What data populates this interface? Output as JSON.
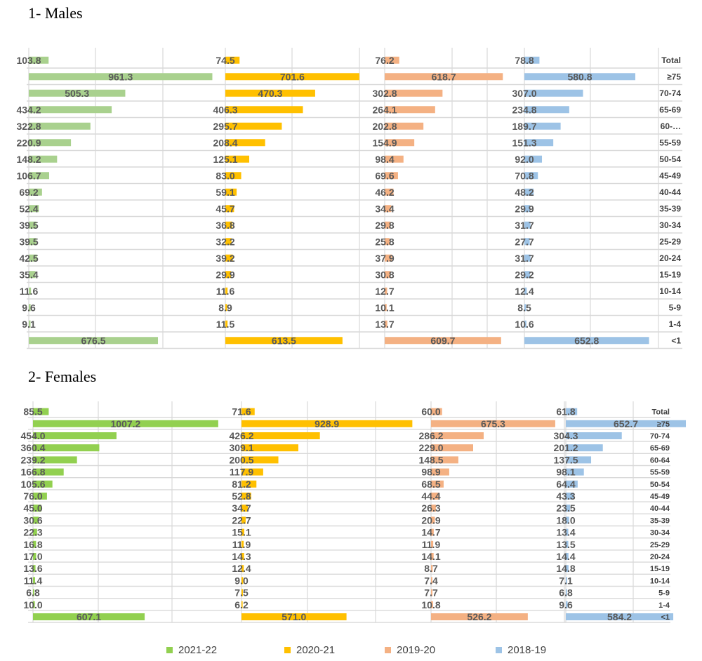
{
  "sections": {
    "males_title": "1-    Males",
    "females_title": "2-   Females"
  },
  "legend": [
    {
      "label": "2021-22",
      "color": "#92d050"
    },
    {
      "label": "2020-21",
      "color": "#ffc000"
    },
    {
      "label": "2019-20",
      "color": "#f4b183"
    },
    {
      "label": "2018-19",
      "color": "#9dc3e6"
    }
  ],
  "chart_data": [
    {
      "type": "bar",
      "title": "1-    Males",
      "categories": [
        "Total",
        "≥75",
        "70-74",
        "65-69",
        "60-…",
        "55-59",
        "50-54",
        "45-49",
        "40-44",
        "35-39",
        "30-34",
        "25-29",
        "20-24",
        "15-19",
        "10-14",
        "5-9",
        "1-4",
        "<1"
      ],
      "series": [
        {
          "name": "2021-22",
          "color": "#a9d18e",
          "values": [
            103.8,
            961.3,
            505.3,
            434.2,
            322.8,
            220.9,
            148.2,
            106.7,
            69.2,
            52.4,
            39.5,
            39.5,
            42.5,
            35.4,
            11.6,
            9.6,
            9.1,
            676.5
          ]
        },
        {
          "name": "2020-21",
          "color": "#ffc000",
          "values": [
            74.5,
            701.6,
            470.3,
            406.3,
            295.7,
            208.4,
            125.1,
            83.0,
            59.1,
            45.7,
            36.8,
            32.2,
            39.2,
            29.9,
            11.6,
            8.9,
            11.5,
            613.5
          ]
        },
        {
          "name": "2019-20",
          "color": "#f4b183",
          "values": [
            76.2,
            618.7,
            302.8,
            264.1,
            202.8,
            154.9,
            98.4,
            69.6,
            46.2,
            34.4,
            29.8,
            25.8,
            37.9,
            30.8,
            12.7,
            10.1,
            13.7,
            609.7
          ]
        },
        {
          "name": "2018-19",
          "color": "#9dc3e6",
          "values": [
            78.8,
            580.8,
            307.0,
            234.8,
            189.7,
            151.3,
            92.0,
            70.8,
            48.2,
            29.9,
            31.7,
            27.7,
            31.7,
            29.2,
            12.4,
            8.5,
            10.6,
            652.8
          ]
        }
      ]
    },
    {
      "type": "bar",
      "title": "2-   Females",
      "categories": [
        "Total",
        "≥75",
        "70-74",
        "65-69",
        "60-64",
        "55-59",
        "50-54",
        "45-49",
        "40-44",
        "35-39",
        "30-34",
        "25-29",
        "20-24",
        "15-19",
        "10-14",
        "5-9",
        "1-4",
        "<1"
      ],
      "series": [
        {
          "name": "2021-22",
          "color": "#92d050",
          "values": [
            85.5,
            1007.2,
            454.0,
            360.4,
            239.2,
            166.8,
            105.6,
            76.0,
            45.0,
            30.6,
            22.3,
            16.8,
            17.0,
            13.6,
            11.4,
            6.8,
            10.0,
            607.1
          ]
        },
        {
          "name": "2020-21",
          "color": "#ffc000",
          "values": [
            71.6,
            928.9,
            426.2,
            309.1,
            200.5,
            117.9,
            81.2,
            52.8,
            34.7,
            22.7,
            15.1,
            11.9,
            14.3,
            12.4,
            9.0,
            7.5,
            6.2,
            571.0
          ]
        },
        {
          "name": "2019-20",
          "color": "#f4b183",
          "values": [
            60.0,
            675.3,
            286.2,
            229.0,
            148.5,
            98.9,
            68.5,
            44.4,
            26.3,
            20.9,
            14.7,
            11.9,
            14.1,
            8.7,
            7.4,
            7.7,
            10.8,
            526.2
          ]
        },
        {
          "name": "2018-19",
          "color": "#9dc3e6",
          "values": [
            61.8,
            652.7,
            304.3,
            201.2,
            137.5,
            98.1,
            64.4,
            43.3,
            23.5,
            18.0,
            13.4,
            13.5,
            14.4,
            14.8,
            7.1,
            6.8,
            9.6,
            584.2
          ]
        }
      ]
    }
  ]
}
